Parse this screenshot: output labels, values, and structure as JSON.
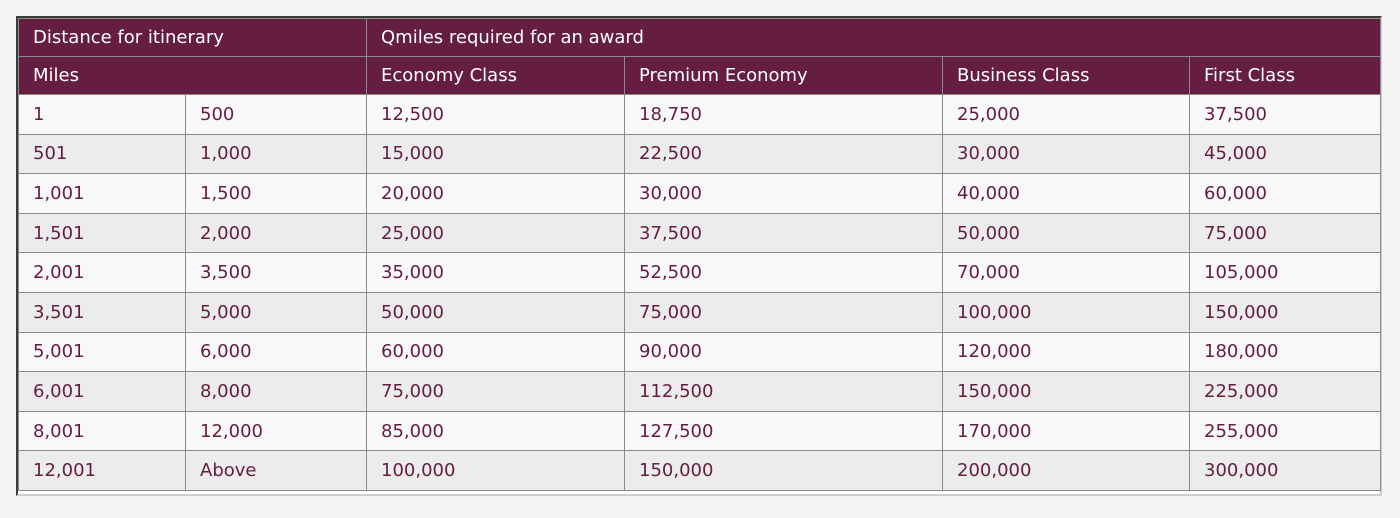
{
  "header": {
    "distance_label": "Distance for itinerary",
    "qmiles_label": "Qmiles required for an award",
    "miles_label": "Miles",
    "economy_label": "Economy Class",
    "premium_label": "Premium Economy",
    "business_label": "Business Class",
    "first_label": "First Class"
  },
  "rows": [
    {
      "from": "1",
      "to": "500",
      "economy": "12,500",
      "premium": "18,750",
      "business": "25,000",
      "first": "37,500"
    },
    {
      "from": "501",
      "to": "1,000",
      "economy": "15,000",
      "premium": "22,500",
      "business": "30,000",
      "first": "45,000"
    },
    {
      "from": "1,001",
      "to": "1,500",
      "economy": "20,000",
      "premium": "30,000",
      "business": "40,000",
      "first": "60,000"
    },
    {
      "from": "1,501",
      "to": "2,000",
      "economy": "25,000",
      "premium": "37,500",
      "business": "50,000",
      "first": "75,000"
    },
    {
      "from": "2,001",
      "to": "3,500",
      "economy": "35,000",
      "premium": "52,500",
      "business": "70,000",
      "first": "105,000"
    },
    {
      "from": "3,501",
      "to": "5,000",
      "economy": "50,000",
      "premium": "75,000",
      "business": "100,000",
      "first": "150,000"
    },
    {
      "from": "5,001",
      "to": "6,000",
      "economy": "60,000",
      "premium": "90,000",
      "business": "120,000",
      "first": "180,000"
    },
    {
      "from": "6,001",
      "to": "8,000",
      "economy": "75,000",
      "premium": "112,500",
      "business": "150,000",
      "first": "225,000"
    },
    {
      "from": "8,001",
      "to": "12,000",
      "economy": "85,000",
      "premium": "127,500",
      "business": "170,000",
      "first": "255,000"
    },
    {
      "from": "12,001",
      "to": "Above",
      "economy": "100,000",
      "premium": "150,000",
      "business": "200,000",
      "first": "300,000"
    }
  ],
  "colors": {
    "header_bg": "#651d42",
    "text": "#651d42"
  }
}
